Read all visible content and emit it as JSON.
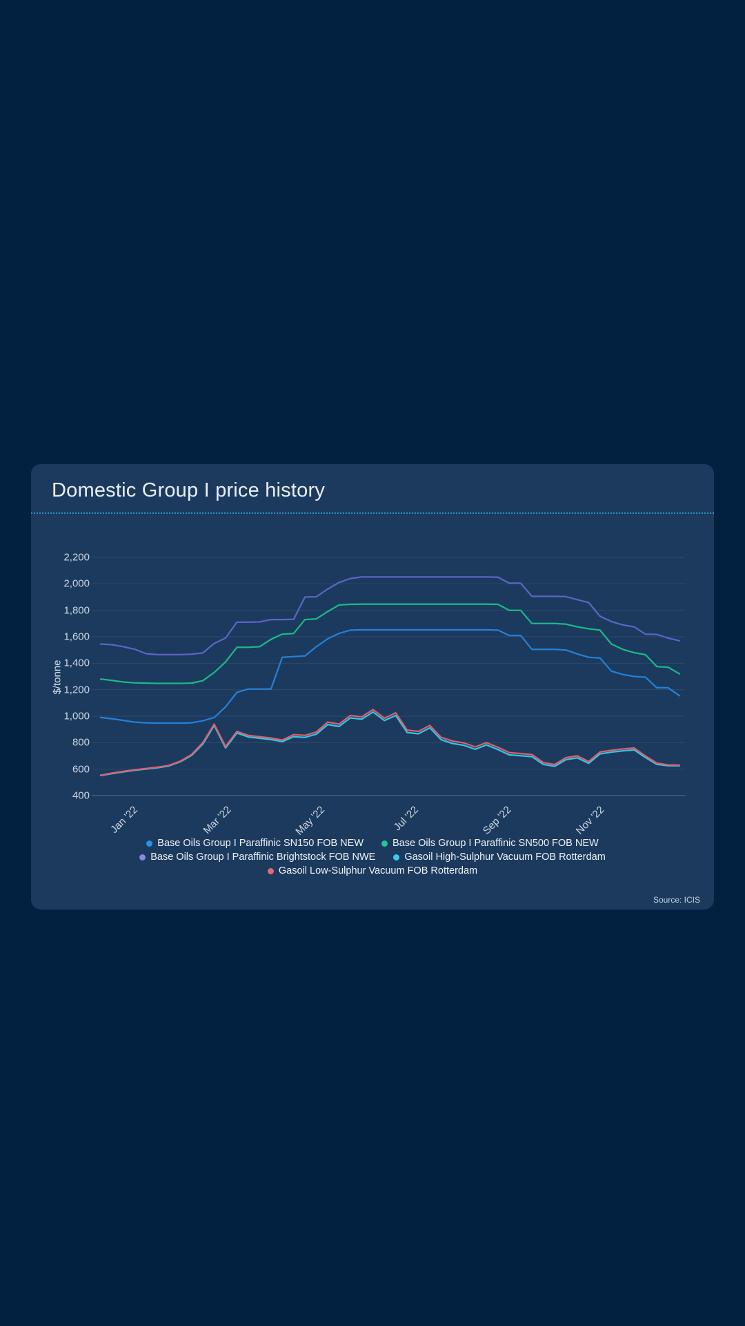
{
  "page": {
    "background_color": "#02203f"
  },
  "card": {
    "title": "Domestic Group I price history",
    "background_color": "#1c3a5e",
    "divider_color": "#2d9ed1",
    "source": "Source: ICIS"
  },
  "chart_data": {
    "type": "line",
    "title": "Domestic Group I price history",
    "xlabel": "",
    "ylabel": "$/tonne",
    "ylim": [
      400,
      2200
    ],
    "ytick_interval": 200,
    "yticks": [
      "2,200",
      "2,000",
      "1,800",
      "1,600",
      "1,400",
      "1,200",
      "1,000",
      "800",
      "600",
      "400"
    ],
    "xticks": [
      {
        "label": "Jan '22",
        "pos": 0.052
      },
      {
        "label": "Mar '22",
        "pos": 0.21
      },
      {
        "label": "May '22",
        "pos": 0.367
      },
      {
        "label": "Jul '22",
        "pos": 0.525
      },
      {
        "label": "Sep '22",
        "pos": 0.682
      },
      {
        "label": "Nov '22",
        "pos": 0.839
      }
    ],
    "grid": "horizontal",
    "grid_color": "#2f4a6a",
    "axis_line_color": "#55718e",
    "legend_position": "bottom",
    "legend_rows": [
      [
        0,
        1
      ],
      [
        2,
        3
      ],
      [
        4
      ]
    ],
    "frequency": "weekly",
    "series": [
      {
        "name": "Base Oils Group I Paraffinic SN150 FOB NEW",
        "color": "#2480d6",
        "dot_color": "#2493ef",
        "values": [
          990,
          980,
          968,
          955,
          950,
          948,
          948,
          948,
          950,
          965,
          990,
          1070,
          1180,
          1205,
          1205,
          1205,
          1445,
          1450,
          1455,
          1525,
          1585,
          1625,
          1650,
          1652,
          1652,
          1652,
          1652,
          1652,
          1652,
          1652,
          1652,
          1652,
          1652,
          1652,
          1652,
          1650,
          1610,
          1610,
          1505,
          1505,
          1505,
          1500,
          1470,
          1445,
          1440,
          1340,
          1315,
          1300,
          1295,
          1215,
          1215,
          1155
        ]
      },
      {
        "name": "Base Oils Group I Paraffinic SN500 FOB NEW",
        "color": "#19b988",
        "dot_color": "#21c795",
        "values": [
          1280,
          1270,
          1258,
          1252,
          1250,
          1248,
          1248,
          1248,
          1250,
          1268,
          1330,
          1410,
          1520,
          1520,
          1525,
          1580,
          1620,
          1625,
          1730,
          1735,
          1790,
          1840,
          1845,
          1847,
          1847,
          1847,
          1847,
          1847,
          1847,
          1847,
          1847,
          1847,
          1847,
          1847,
          1847,
          1845,
          1800,
          1800,
          1700,
          1700,
          1700,
          1695,
          1675,
          1660,
          1650,
          1545,
          1505,
          1480,
          1465,
          1375,
          1370,
          1320
        ]
      },
      {
        "name": "Base Oils Group I Paraffinic Brightstock FOB NWE",
        "color": "#5d64c4",
        "dot_color": "#8a87dd",
        "values": [
          1545,
          1540,
          1525,
          1505,
          1472,
          1465,
          1465,
          1465,
          1468,
          1478,
          1550,
          1590,
          1710,
          1710,
          1712,
          1730,
          1730,
          1732,
          1900,
          1902,
          1960,
          2010,
          2040,
          2052,
          2052,
          2052,
          2052,
          2052,
          2052,
          2052,
          2052,
          2052,
          2052,
          2052,
          2052,
          2050,
          2005,
          2005,
          1905,
          1905,
          1905,
          1903,
          1880,
          1858,
          1755,
          1715,
          1690,
          1675,
          1620,
          1618,
          1590,
          1570
        ]
      },
      {
        "name": "Gasoil High-Sulphur Vacuum FOB Rotterdam",
        "color": "#38c2e2",
        "dot_color": "#3fc9e8",
        "values": [
          552,
          566,
          579,
          591,
          601,
          611,
          624,
          655,
          703,
          790,
          930,
          760,
          873,
          843,
          833,
          823,
          808,
          845,
          840,
          864,
          937,
          922,
          987,
          977,
          1032,
          967,
          1005,
          877,
          867,
          912,
          822,
          794,
          780,
          750,
          783,
          748,
          708,
          701,
          694,
          636,
          621,
          672,
          685,
          644,
          715,
          728,
          738,
          746,
          688,
          636,
          626,
          626
        ]
      },
      {
        "name": "Gasoil Low-Sulphur Vacuum FOB Rotterdam",
        "color": "#dd5f6a",
        "dot_color": "#ea6672",
        "values": [
          555,
          570,
          583,
          595,
          605,
          615,
          628,
          660,
          710,
          800,
          940,
          770,
          885,
          855,
          845,
          835,
          820,
          860,
          855,
          880,
          955,
          940,
          1005,
          995,
          1050,
          985,
          1025,
          895,
          885,
          930,
          840,
          812,
          798,
          768,
          800,
          765,
          725,
          718,
          710,
          650,
          635,
          687,
          700,
          658,
          729,
          742,
          752,
          760,
          700,
          645,
          632,
          630
        ]
      }
    ]
  }
}
